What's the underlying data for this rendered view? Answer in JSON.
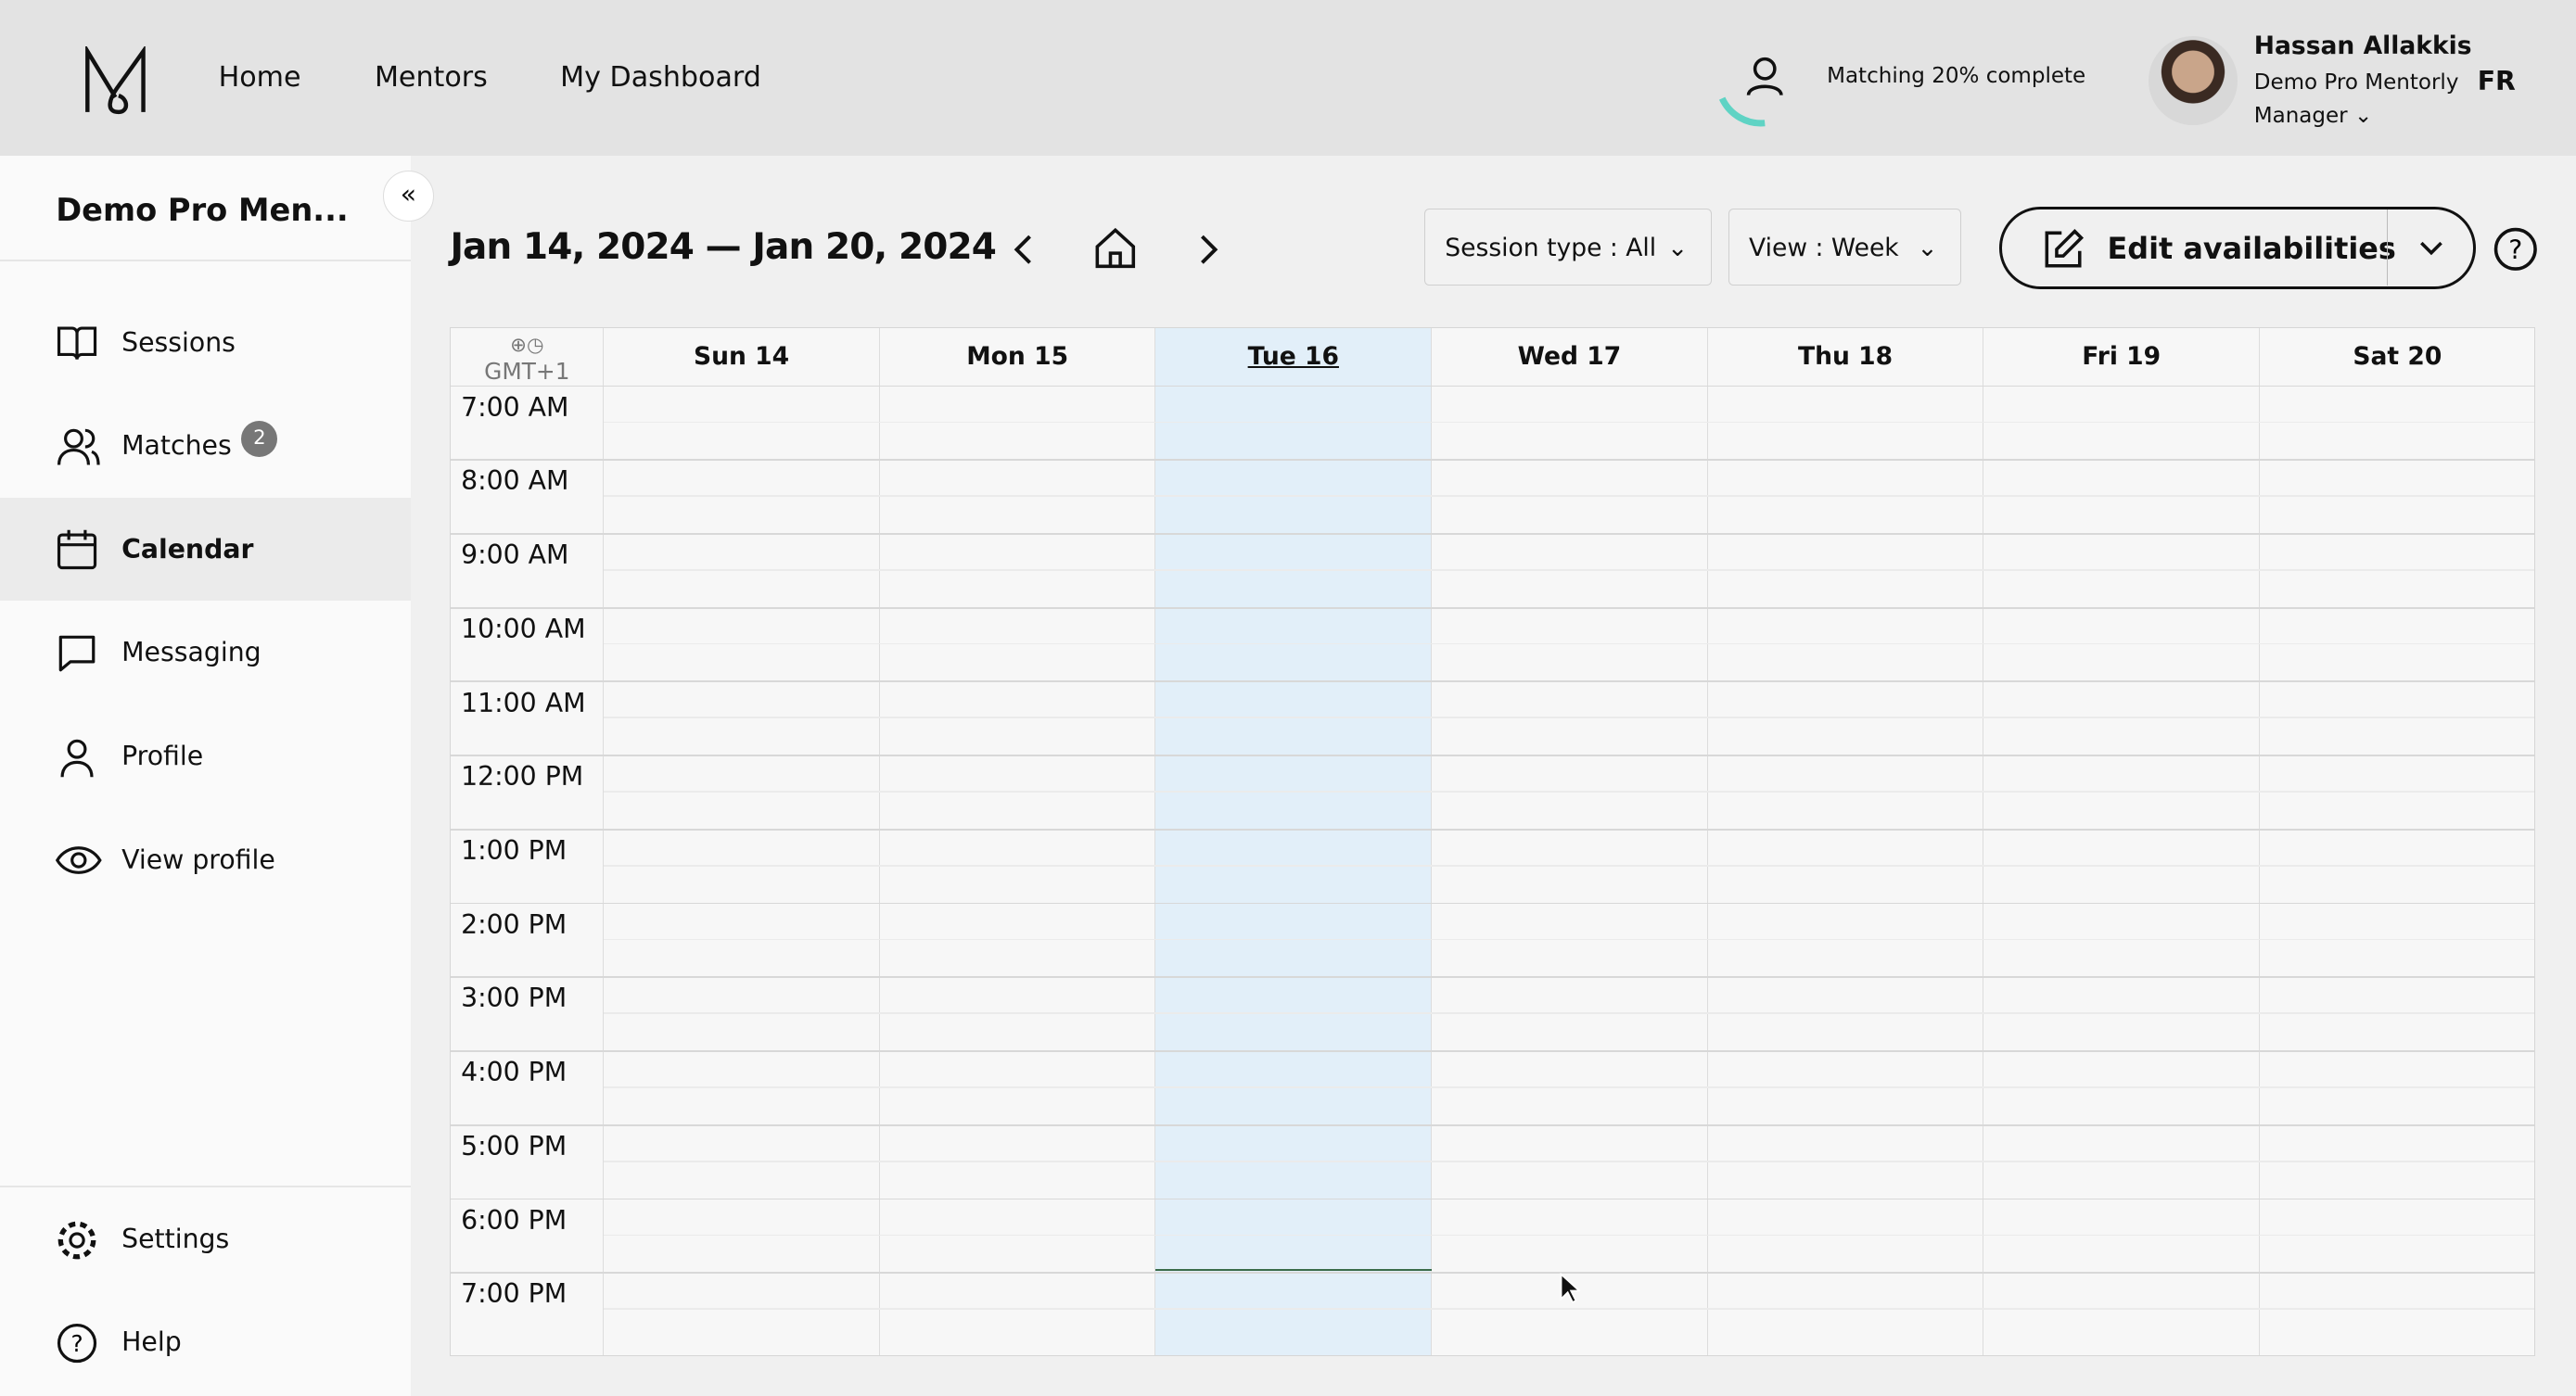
{
  "header": {
    "nav": [
      "Home",
      "Mentors",
      "My Dashboard"
    ],
    "matching_text": "Matching 20% complete",
    "matching_progress": 20,
    "user_name": "Hassan Allakkis",
    "user_org": "Demo Pro Mentorly",
    "user_role": "Manager",
    "language": "FR",
    "accent": "#5fd3c4"
  },
  "sidebar": {
    "title": "Demo Pro Men...",
    "items": [
      {
        "label": "Sessions",
        "icon": "book-icon"
      },
      {
        "label": "Matches",
        "icon": "users-icon",
        "badge": "2"
      },
      {
        "label": "Calendar",
        "icon": "calendar-icon",
        "active": true
      },
      {
        "label": "Messaging",
        "icon": "message-icon"
      },
      {
        "label": "Profile",
        "icon": "user-icon"
      },
      {
        "label": "View profile",
        "icon": "eye-icon"
      }
    ],
    "bottom": [
      {
        "label": "Settings",
        "icon": "gear-icon"
      },
      {
        "label": "Help",
        "icon": "help-icon"
      }
    ]
  },
  "toolbar": {
    "range": "Jan 14, 2024 — Jan 20, 2024",
    "session_type": "Session type : All",
    "view": "View : Week",
    "edit": "Edit availabilities"
  },
  "calendar": {
    "timezone": "GMT+1",
    "days": [
      "Sun 14",
      "Mon 15",
      "Tue 16",
      "Wed 17",
      "Thu 18",
      "Fri 19",
      "Sat 20"
    ],
    "today": "Tue 16",
    "hours": [
      "7:00 AM",
      "8:00 AM",
      "9:00 AM",
      "10:00 AM",
      "11:00 AM",
      "12:00 PM",
      "1:00 PM",
      "2:00 PM",
      "3:00 PM",
      "4:00 PM",
      "5:00 PM",
      "6:00 PM",
      "7:00 PM"
    ],
    "today_color": "#e2eff9"
  }
}
